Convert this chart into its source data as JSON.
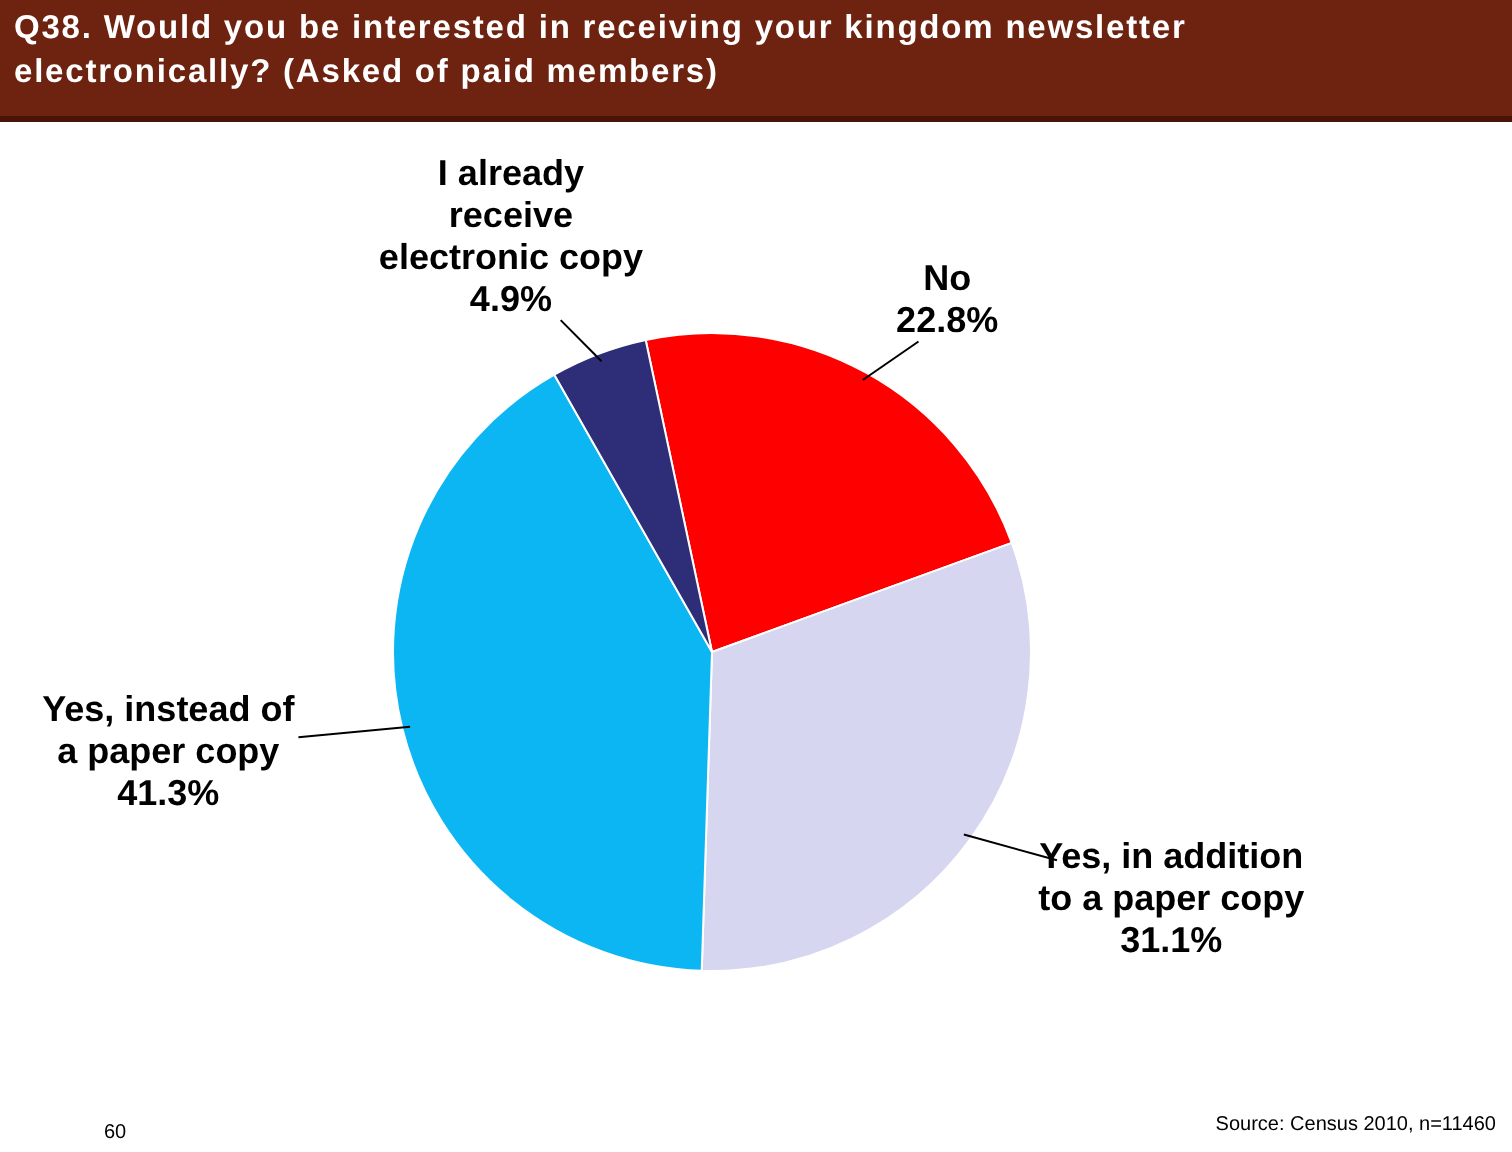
{
  "chart_data": {
    "type": "pie",
    "title": "Q38. Would you be interested in receiving your kingdom newsletter electronically? (Asked of paid members)",
    "categories": [
      "No",
      "Yes, in addition to a paper copy",
      "Yes, instead of a paper copy",
      "I already receive electronic copy"
    ],
    "values": [
      22.8,
      31.1,
      41.3,
      4.9
    ],
    "value_labels": [
      "22.8%",
      "31.1%",
      "41.3%",
      "4.9%"
    ],
    "colors": [
      "#fe0000",
      "#d6d6f0",
      "#0cb6f2",
      "#2e2e78"
    ],
    "legend": false,
    "annotations": [
      "Source: Census 2010, n=11460",
      "60"
    ]
  }
}
